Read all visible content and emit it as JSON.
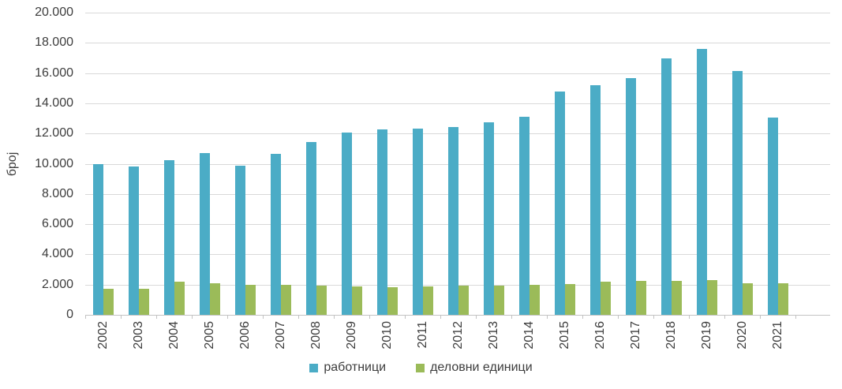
{
  "chart_data": {
    "type": "bar",
    "title": "",
    "xlabel": "",
    "ylabel": "број",
    "ylim": [
      0,
      20000
    ],
    "grid": true,
    "legend_position": "bottom",
    "y_tick_values": [
      0,
      2000,
      4000,
      6000,
      8000,
      10000,
      12000,
      14000,
      16000,
      18000,
      20000
    ],
    "y_tick_labels": [
      "0",
      "2.000",
      "4.000",
      "6.000",
      "8.000",
      "10.000",
      "12.000",
      "14.000",
      "16.000",
      "18.000",
      "20.000"
    ],
    "categories": [
      "2002",
      "2003",
      "2004",
      "2005",
      "2006",
      "2007",
      "2008",
      "2009",
      "2010",
      "2011",
      "2012",
      "2013",
      "2014",
      "2015",
      "2016",
      "2017",
      "2018",
      "2019",
      "2020",
      "2021"
    ],
    "series": [
      {
        "name": "работници",
        "key": "workers",
        "color": "#4BACC6",
        "values": [
          10000,
          9800,
          10250,
          10700,
          9850,
          10650,
          11450,
          12050,
          12250,
          12300,
          12450,
          12750,
          13100,
          14800,
          15200,
          15650,
          16950,
          17600,
          16150,
          13050
        ]
      },
      {
        "name": "деловни единици",
        "key": "business-units",
        "color": "#9BBB59",
        "values": [
          1700,
          1700,
          2200,
          2100,
          2000,
          2000,
          1950,
          1900,
          1850,
          1900,
          1950,
          1950,
          2000,
          2050,
          2200,
          2250,
          2250,
          2300,
          2100,
          2100
        ]
      }
    ]
  },
  "colors": {
    "gridline": "#d9d9d9",
    "axis_line": "#c3c3c3",
    "text": "#3d3d3d",
    "background": "#ffffff"
  }
}
